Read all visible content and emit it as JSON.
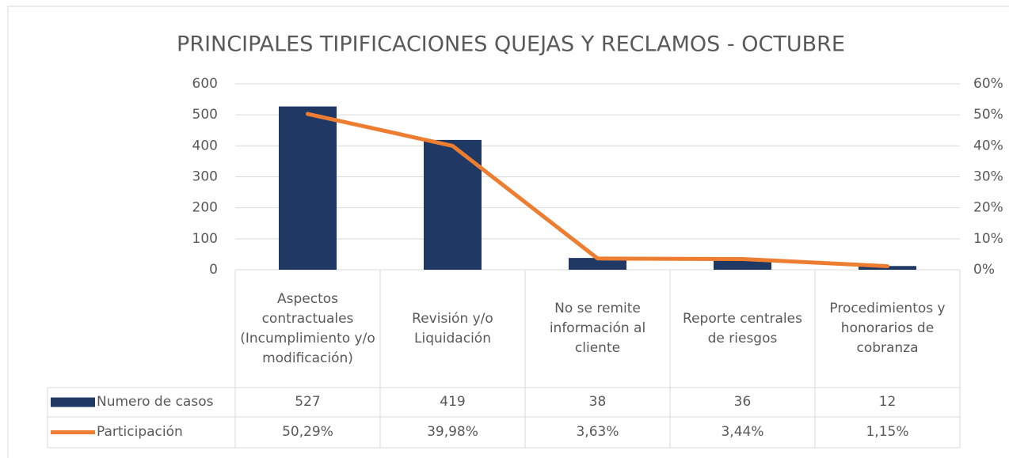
{
  "chart_data": {
    "type": "bar-line",
    "title": "PRINCIPALES TIPIFICACIONES QUEJAS Y RECLAMOS - OCTUBRE",
    "categories": [
      "Aspectos contractuales (Incumplimiento y/o modificación)",
      "Revisión y/o Liquidación",
      "No se remite información al cliente",
      "Reporte centrales de riesgos",
      "Procedimientos y honorarios de cobranza"
    ],
    "series": [
      {
        "name": "Numero de casos",
        "type": "bar",
        "color": "#1f3864",
        "values": [
          527,
          419,
          38,
          36,
          12
        ]
      },
      {
        "name": "Participación",
        "type": "line",
        "color": "#ed7d31",
        "axis": "y2",
        "values": [
          50.29,
          39.98,
          3.63,
          3.44,
          1.15
        ],
        "value_labels": [
          "50,29%",
          "39,98%",
          "3,63%",
          "3,44%",
          "1,15%"
        ]
      }
    ],
    "ylim": [
      0,
      600
    ],
    "yticks": [
      0,
      100,
      200,
      300,
      400,
      500,
      600
    ],
    "y2lim": [
      0,
      60
    ],
    "y2ticks": [
      {
        "value": 0,
        "label": "0%"
      },
      {
        "value": 10,
        "label": "10%"
      },
      {
        "value": 20,
        "label": "20%"
      },
      {
        "value": 30,
        "label": "30%"
      },
      {
        "value": 40,
        "label": "40%"
      },
      {
        "value": 50,
        "label": "50%"
      },
      {
        "value": 60,
        "label": "60%"
      }
    ],
    "grid": true,
    "data_table": true
  }
}
